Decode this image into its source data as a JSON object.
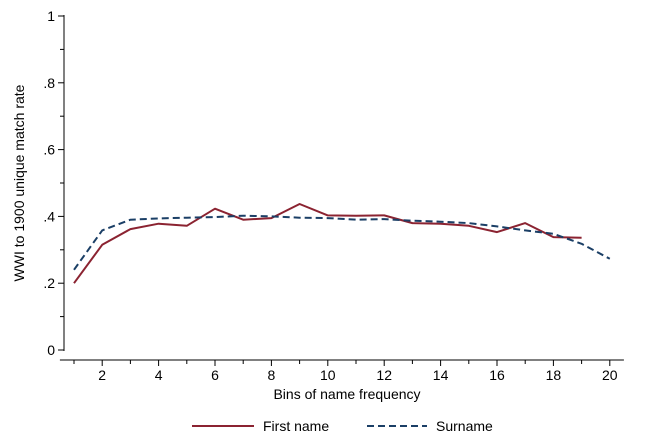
{
  "chart_data": {
    "type": "line",
    "title": "",
    "xlabel": "Bins of name frequency",
    "ylabel": "WWI to 1900 unique match rate",
    "xlim": [
      0.5,
      20.5
    ],
    "ylim": [
      0,
      1
    ],
    "xticks_major": [
      2,
      4,
      6,
      8,
      10,
      12,
      14,
      16,
      18,
      20
    ],
    "xticks_minor": [
      1,
      3,
      5,
      7,
      9,
      11,
      13,
      15,
      17,
      19
    ],
    "yticks_major": [
      0,
      0.2,
      0.4,
      0.6,
      0.8,
      1
    ],
    "ytick_labels": [
      "0",
      ".2",
      ".4",
      ".6",
      ".8",
      "1"
    ],
    "yticks_minor": [
      0.1,
      0.3,
      0.5,
      0.7,
      0.9
    ],
    "grid": false,
    "legend_position": "bottom",
    "series": [
      {
        "name": "First name",
        "color": "#8b2331",
        "style": "solid",
        "x": [
          1,
          2,
          3,
          4,
          5,
          6,
          7,
          8,
          9,
          10,
          11,
          12,
          13,
          14,
          15,
          16,
          17,
          18,
          19
        ],
        "values": [
          0.2,
          0.315,
          0.362,
          0.378,
          0.372,
          0.423,
          0.39,
          0.395,
          0.437,
          0.403,
          0.402,
          0.403,
          0.38,
          0.378,
          0.372,
          0.353,
          0.38,
          0.338,
          0.336
        ]
      },
      {
        "name": "Surname",
        "color": "#1b3f66",
        "style": "dashed",
        "x": [
          1,
          2,
          3,
          4,
          5,
          6,
          7,
          8,
          9,
          10,
          11,
          12,
          13,
          14,
          15,
          16,
          17,
          18,
          19,
          20
        ],
        "values": [
          0.24,
          0.358,
          0.39,
          0.394,
          0.396,
          0.398,
          0.402,
          0.4,
          0.396,
          0.395,
          0.39,
          0.392,
          0.387,
          0.384,
          0.38,
          0.37,
          0.358,
          0.348,
          0.318,
          0.273
        ]
      }
    ]
  }
}
